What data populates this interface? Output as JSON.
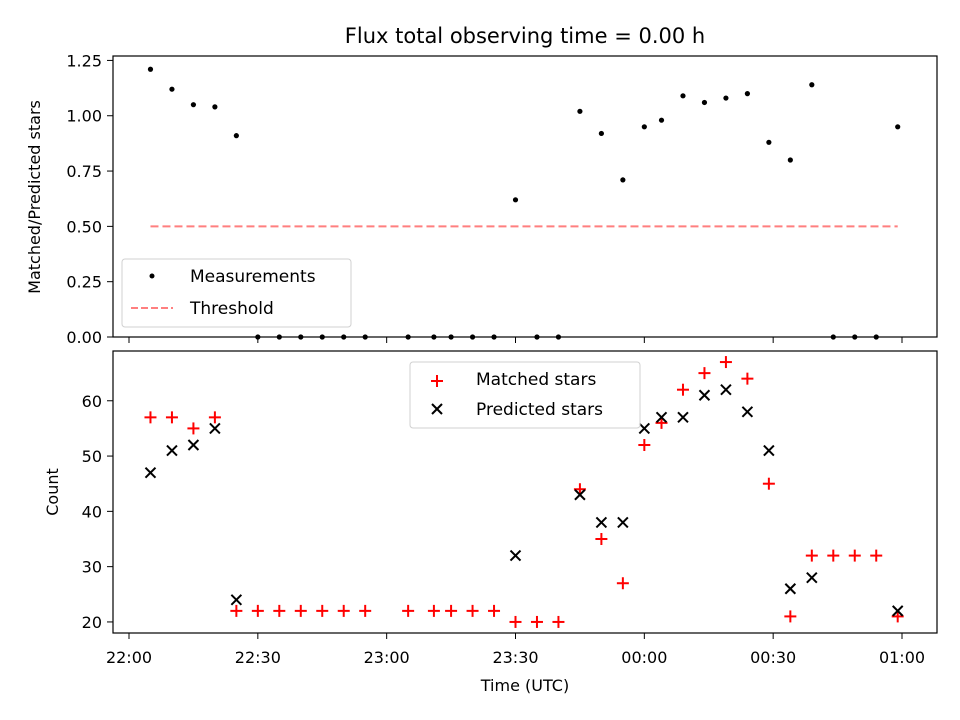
{
  "chart_data": [
    {
      "type": "scatter",
      "title": "Flux total observing time = 0.00 h",
      "ylabel": "Matched/Predicted stars",
      "xlabel": "",
      "ylim": [
        0,
        1.27
      ],
      "yticks": [
        "0.00",
        "0.25",
        "0.50",
        "0.75",
        "1.00",
        "1.25"
      ],
      "legend": {
        "position": "lower-left",
        "entries": [
          "Measurements",
          "Threshold"
        ]
      },
      "series": [
        {
          "name": "Measurements",
          "marker": "dot",
          "color": "#000000",
          "points": [
            [
              "22:05",
              1.21
            ],
            [
              "22:10",
              1.12
            ],
            [
              "22:15",
              1.05
            ],
            [
              "22:20",
              1.04
            ],
            [
              "22:25",
              0.91
            ],
            [
              "22:30",
              0.0
            ],
            [
              "22:35",
              0.0
            ],
            [
              "22:40",
              0.0
            ],
            [
              "22:45",
              0.0
            ],
            [
              "22:50",
              0.0
            ],
            [
              "22:55",
              0.0
            ],
            [
              "23:05",
              0.0
            ],
            [
              "23:11",
              0.0
            ],
            [
              "23:15",
              0.0
            ],
            [
              "23:20",
              0.0
            ],
            [
              "23:25",
              0.0
            ],
            [
              "23:30",
              0.62
            ],
            [
              "23:35",
              0.0
            ],
            [
              "23:40",
              0.0
            ],
            [
              "23:45",
              1.02
            ],
            [
              "23:50",
              0.92
            ],
            [
              "23:55",
              0.71
            ],
            [
              "00:00",
              0.95
            ],
            [
              "00:04",
              0.98
            ],
            [
              "00:09",
              1.09
            ],
            [
              "00:14",
              1.06
            ],
            [
              "00:19",
              1.08
            ],
            [
              "00:24",
              1.1
            ],
            [
              "00:29",
              0.88
            ],
            [
              "00:34",
              0.8
            ],
            [
              "00:39",
              1.14
            ],
            [
              "00:44",
              0.0
            ],
            [
              "00:49",
              0.0
            ],
            [
              "00:54",
              0.0
            ],
            [
              "00:59",
              0.95
            ]
          ]
        },
        {
          "name": "Threshold",
          "style": "dashed",
          "color": "#ff7f7f",
          "points": [
            [
              "22:05",
              0.5
            ],
            [
              "00:59",
              0.5
            ]
          ]
        }
      ]
    },
    {
      "type": "scatter",
      "title": "",
      "ylabel": "Count",
      "xlabel": "Time (UTC)",
      "ylim": [
        18,
        69
      ],
      "yticks": [
        "20",
        "30",
        "40",
        "50",
        "60"
      ],
      "xticks": [
        "22:00",
        "22:30",
        "23:00",
        "23:30",
        "00:00",
        "00:30",
        "01:00"
      ],
      "legend": {
        "position": "upper-center",
        "entries": [
          "Matched stars",
          "Predicted stars"
        ]
      },
      "series": [
        {
          "name": "Matched stars",
          "marker": "plus",
          "color": "#ff0000",
          "points": [
            [
              "22:05",
              57
            ],
            [
              "22:10",
              57
            ],
            [
              "22:15",
              55
            ],
            [
              "22:20",
              57
            ],
            [
              "22:25",
              22
            ],
            [
              "22:30",
              22
            ],
            [
              "22:35",
              22
            ],
            [
              "22:40",
              22
            ],
            [
              "22:45",
              22
            ],
            [
              "22:50",
              22
            ],
            [
              "22:55",
              22
            ],
            [
              "23:05",
              22
            ],
            [
              "23:11",
              22
            ],
            [
              "23:15",
              22
            ],
            [
              "23:20",
              22
            ],
            [
              "23:25",
              22
            ],
            [
              "23:30",
              20
            ],
            [
              "23:35",
              20
            ],
            [
              "23:40",
              20
            ],
            [
              "23:45",
              44
            ],
            [
              "23:50",
              35
            ],
            [
              "23:55",
              27
            ],
            [
              "00:00",
              52
            ],
            [
              "00:04",
              56
            ],
            [
              "00:09",
              62
            ],
            [
              "00:14",
              65
            ],
            [
              "00:19",
              67
            ],
            [
              "00:24",
              64
            ],
            [
              "00:29",
              45
            ],
            [
              "00:34",
              21
            ],
            [
              "00:39",
              32
            ],
            [
              "00:44",
              32
            ],
            [
              "00:49",
              32
            ],
            [
              "00:54",
              32
            ],
            [
              "00:59",
              21
            ]
          ]
        },
        {
          "name": "Predicted stars",
          "marker": "x",
          "color": "#000000",
          "points": [
            [
              "22:05",
              47
            ],
            [
              "22:10",
              51
            ],
            [
              "22:15",
              52
            ],
            [
              "22:20",
              55
            ],
            [
              "22:25",
              24
            ],
            [
              "23:30",
              32
            ],
            [
              "23:45",
              43
            ],
            [
              "23:50",
              38
            ],
            [
              "23:55",
              38
            ],
            [
              "00:00",
              55
            ],
            [
              "00:04",
              57
            ],
            [
              "00:09",
              57
            ],
            [
              "00:14",
              61
            ],
            [
              "00:19",
              62
            ],
            [
              "00:24",
              58
            ],
            [
              "00:29",
              51
            ],
            [
              "00:34",
              26
            ],
            [
              "00:39",
              28
            ],
            [
              "00:59",
              22
            ]
          ]
        }
      ]
    }
  ]
}
